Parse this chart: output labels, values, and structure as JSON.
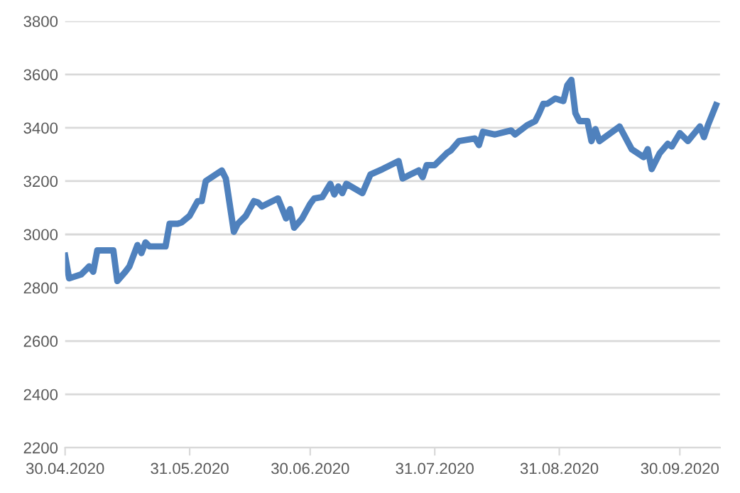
{
  "chart_data": {
    "type": "line",
    "x": [
      "2020-04-30",
      "2020-05-01",
      "2020-05-04",
      "2020-05-06",
      "2020-05-07",
      "2020-05-08",
      "2020-05-11",
      "2020-05-12",
      "2020-05-13",
      "2020-05-15",
      "2020-05-16",
      "2020-05-18",
      "2020-05-19",
      "2020-05-20",
      "2020-05-21",
      "2020-05-25",
      "2020-05-26",
      "2020-05-28",
      "2020-05-29",
      "2020-05-31",
      "2020-06-02",
      "2020-06-03",
      "2020-06-04",
      "2020-06-08",
      "2020-06-09",
      "2020-06-11",
      "2020-06-12",
      "2020-06-14",
      "2020-06-16",
      "2020-06-17",
      "2020-06-18",
      "2020-06-22",
      "2020-06-24",
      "2020-06-25",
      "2020-06-26",
      "2020-06-28",
      "2020-06-30",
      "2020-07-01",
      "2020-07-03",
      "2020-07-05",
      "2020-07-06",
      "2020-07-07",
      "2020-07-08",
      "2020-07-09",
      "2020-07-13",
      "2020-07-15",
      "2020-07-18",
      "2020-07-22",
      "2020-07-23",
      "2020-07-25",
      "2020-07-27",
      "2020-07-28",
      "2020-07-29",
      "2020-07-31",
      "2020-08-03",
      "2020-08-04",
      "2020-08-06",
      "2020-08-10",
      "2020-08-11",
      "2020-08-12",
      "2020-08-15",
      "2020-08-19",
      "2020-08-20",
      "2020-08-23",
      "2020-08-25",
      "2020-08-26",
      "2020-08-27",
      "2020-08-28",
      "2020-08-30",
      "2020-08-31",
      "2020-09-01",
      "2020-09-02",
      "2020-09-03",
      "2020-09-04",
      "2020-09-05",
      "2020-09-07",
      "2020-09-08",
      "2020-09-09",
      "2020-09-10",
      "2020-09-15",
      "2020-09-18",
      "2020-09-21",
      "2020-09-22",
      "2020-09-23",
      "2020-09-25",
      "2020-09-27",
      "2020-09-28",
      "2020-09-30",
      "2020-10-02",
      "2020-10-05",
      "2020-10-06",
      "2020-10-07",
      "2020-10-09"
    ],
    "series": [
      {
        "color": "#4f81bd",
        "values": [
          2920,
          2835,
          2850,
          2880,
          2860,
          2940,
          2940,
          2940,
          2825,
          2860,
          2880,
          2960,
          2930,
          2970,
          2955,
          2955,
          3040,
          3040,
          3045,
          3070,
          3125,
          3125,
          3200,
          3240,
          3210,
          3010,
          3040,
          3070,
          3125,
          3120,
          3105,
          3135,
          3060,
          3095,
          3025,
          3060,
          3115,
          3135,
          3140,
          3190,
          3150,
          3180,
          3155,
          3190,
          3155,
          3225,
          3245,
          3275,
          3210,
          3225,
          3240,
          3215,
          3260,
          3260,
          3305,
          3315,
          3350,
          3360,
          3335,
          3385,
          3375,
          3390,
          3375,
          3410,
          3425,
          3455,
          3490,
          3490,
          3510,
          3505,
          3500,
          3560,
          3580,
          3455,
          3425,
          3425,
          3350,
          3395,
          3350,
          3405,
          3320,
          3290,
          3320,
          3245,
          3305,
          3340,
          3330,
          3380,
          3350,
          3405,
          3365,
          3410,
          3485
        ]
      }
    ],
    "xlim": [
      "2020-04-30",
      "2020-10-10"
    ],
    "xticks": [
      {
        "value": "2020-04-30",
        "label": "30.04.2020"
      },
      {
        "value": "2020-05-31",
        "label": "31.05.2020"
      },
      {
        "value": "2020-06-30",
        "label": "30.06.2020"
      },
      {
        "value": "2020-07-31",
        "label": "31.07.2020"
      },
      {
        "value": "2020-08-31",
        "label": "31.08.2020"
      },
      {
        "value": "2020-09-30",
        "label": "30.09.2020"
      }
    ],
    "ylim": [
      2200,
      3800
    ],
    "yticks": [
      2200,
      2400,
      2600,
      2800,
      3000,
      3200,
      3400,
      3600,
      3800
    ],
    "grid": "y",
    "marker": "none",
    "line_style": "solid"
  }
}
